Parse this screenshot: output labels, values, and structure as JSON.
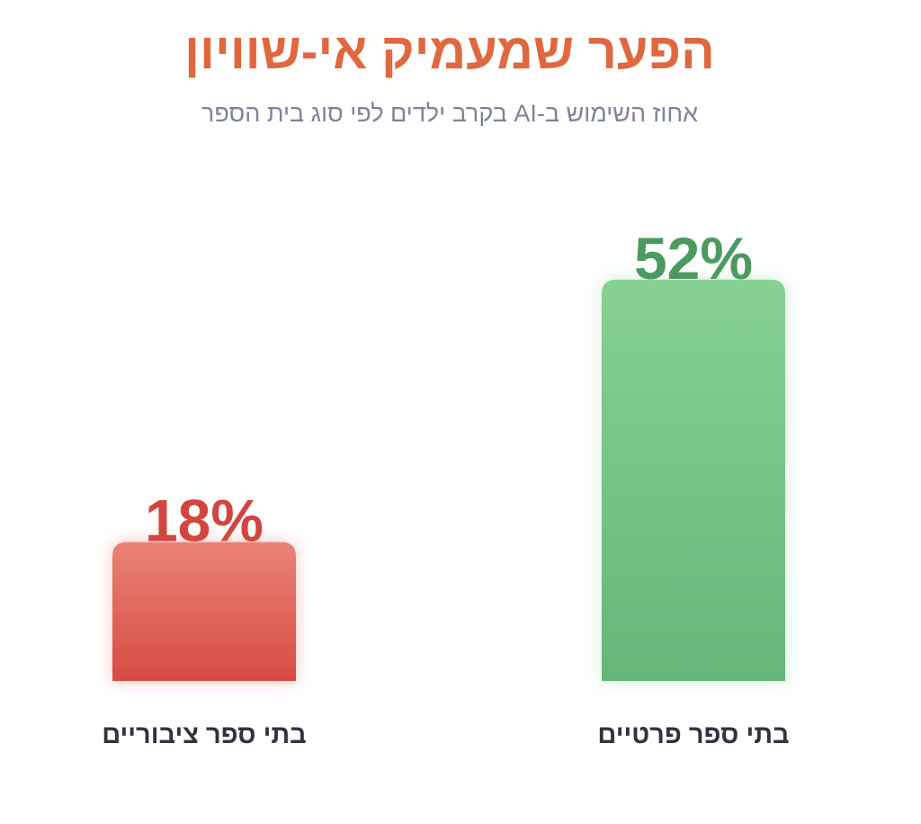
{
  "chart_data": {
    "type": "bar",
    "title": "הפער שמעמיק אי-שוויון",
    "subtitle": "אחוז השימוש ב-AI בקרב ילדים לפי סוג בית הספר",
    "xlabel": "",
    "ylabel": "",
    "ylim": [
      0,
      57
    ],
    "grid": false,
    "categories": [
      "בתי ספר ציבוריים",
      "בתי ספר פרטיים"
    ],
    "values": [
      18,
      52
    ],
    "value_labels": [
      "18%",
      "52%"
    ],
    "colors": {
      "public_top": "#ea8277",
      "public_bottom": "#d54b42",
      "public_text": "#d2463e",
      "private_top": "#86d193",
      "private_bottom": "#66b679",
      "private_text": "#4c9a60",
      "title": "#e0683f",
      "subtitle": "#7c8598"
    }
  }
}
